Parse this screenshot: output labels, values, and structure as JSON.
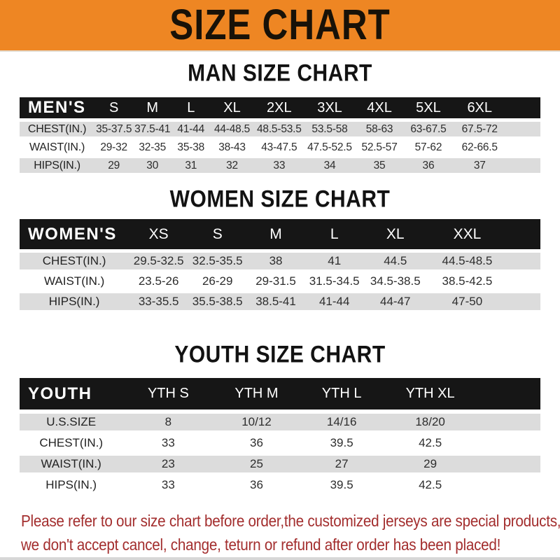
{
  "banner": {
    "title": "SIZE CHART"
  },
  "colors": {
    "banner_orange": "#EE8623",
    "table_header_black": "#161616",
    "row_gray": "#DCDCDC",
    "note_red": "#A32E2E"
  },
  "man_section": {
    "heading": "MAN SIZE CHART",
    "table": {
      "header": [
        "MEN'S",
        "S",
        "M",
        "L",
        "XL",
        "2XL",
        "3XL",
        "4XL",
        "5XL",
        "6XL"
      ],
      "rows": [
        {
          "label": "CHEST(IN.)",
          "values": [
            "35-37.5",
            "37.5-41",
            "41-44",
            "44-48.5",
            "48.5-53.5",
            "53.5-58",
            "58-63",
            "63-67.5",
            "67.5-72"
          ]
        },
        {
          "label": "WAIST(IN.)",
          "values": [
            "29-32",
            "32-35",
            "35-38",
            "38-43",
            "43-47.5",
            "47.5-52.5",
            "52.5-57",
            "57-62",
            "62-66.5"
          ]
        },
        {
          "label": "HIPS(IN.)",
          "values": [
            "29",
            "30",
            "31",
            "32",
            "33",
            "34",
            "35",
            "36",
            "37"
          ]
        }
      ]
    }
  },
  "women_section": {
    "heading": "WOMEN SIZE CHART",
    "table": {
      "header": [
        "WOMEN'S",
        "XS",
        "S",
        "M",
        "L",
        "XL",
        "XXL"
      ],
      "rows": [
        {
          "label": "CHEST(IN.)",
          "values": [
            "29.5-32.5",
            "32.5-35.5",
            "38",
            "41",
            "44.5",
            "44.5-48.5"
          ]
        },
        {
          "label": "WAIST(IN.)",
          "values": [
            "23.5-26",
            "26-29",
            "29-31.5",
            "31.5-34.5",
            "34.5-38.5",
            "38.5-42.5"
          ]
        },
        {
          "label": "HIPS(IN.)",
          "values": [
            "33-35.5",
            "35.5-38.5",
            "38.5-41",
            "41-44",
            "44-47",
            "47-50"
          ]
        }
      ]
    }
  },
  "youth_section": {
    "heading": "YOUTH SIZE CHART",
    "table": {
      "header": [
        "YOUTH",
        "YTH S",
        "YTH M",
        "YTH L",
        "YTH XL"
      ],
      "rows": [
        {
          "label": "U.S.SIZE",
          "values": [
            "8",
            "10/12",
            "14/16",
            "18/20"
          ]
        },
        {
          "label": "CHEST(IN.)",
          "values": [
            "33",
            "36",
            "39.5",
            "42.5"
          ]
        },
        {
          "label": "WAIST(IN.)",
          "values": [
            "23",
            "25",
            "27",
            "29"
          ]
        },
        {
          "label": "HIPS(IN.)",
          "values": [
            "33",
            "36",
            "39.5",
            "42.5"
          ]
        }
      ]
    }
  },
  "note": {
    "line1": "Please refer to our size chart before order,the customized jerseys are special products,",
    "line2": "we don't accept cancel, change, teturn or refund after order has been placed!"
  }
}
